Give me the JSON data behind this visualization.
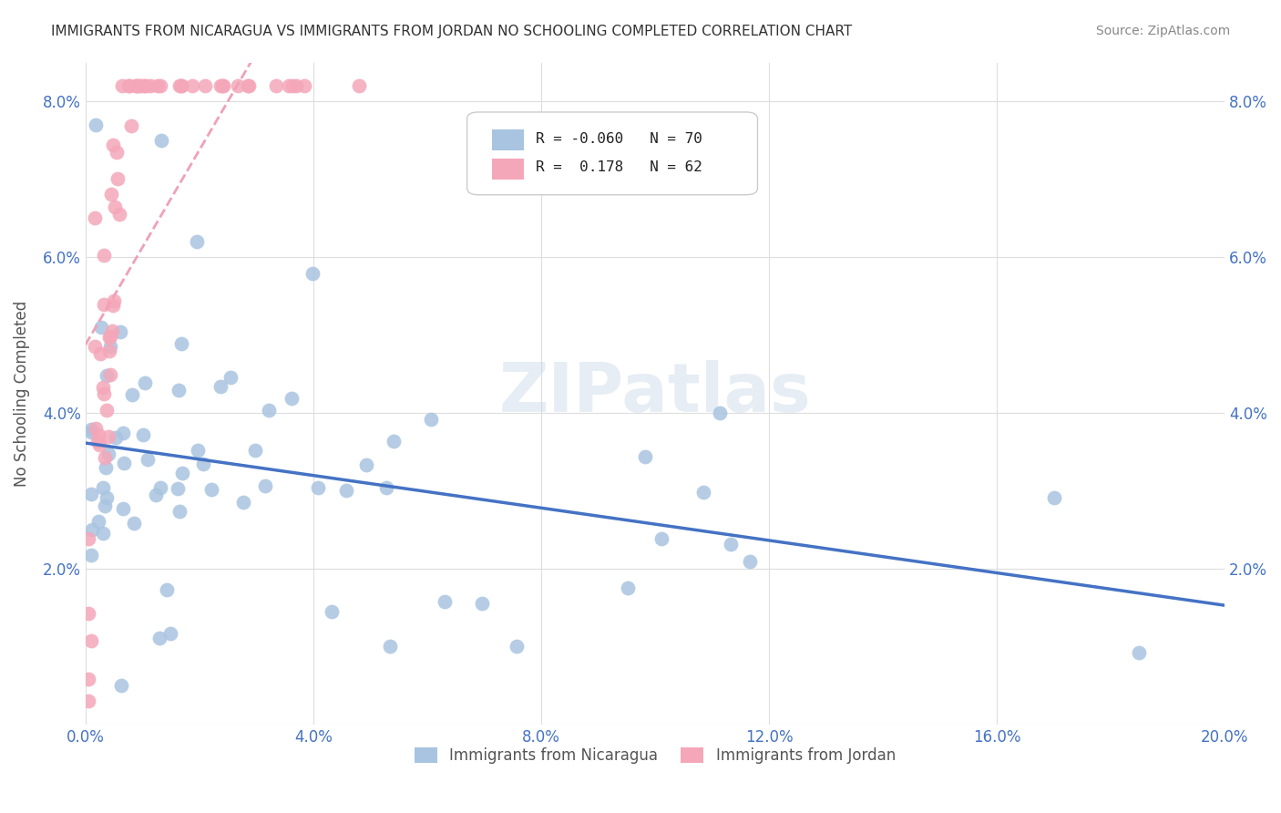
{
  "title": "IMMIGRANTS FROM NICARAGUA VS IMMIGRANTS FROM JORDAN NO SCHOOLING COMPLETED CORRELATION CHART",
  "source": "Source: ZipAtlas.com",
  "ylabel": "No Schooling Completed",
  "xlim": [
    0.0,
    0.2
  ],
  "ylim": [
    0.0,
    0.085
  ],
  "xticks": [
    0.0,
    0.04,
    0.08,
    0.12,
    0.16,
    0.2
  ],
  "xtick_labels": [
    "0.0%",
    "4.0%",
    "8.0%",
    "12.0%",
    "16.0%",
    "20.0%"
  ],
  "yticks": [
    0.0,
    0.02,
    0.04,
    0.06,
    0.08
  ],
  "ytick_labels": [
    "",
    "2.0%",
    "4.0%",
    "6.0%",
    "8.0%"
  ],
  "color_nicaragua": "#a8c4e0",
  "color_jordan": "#f4a7b9",
  "trendline_nicaragua": "#4472c4",
  "trendline_jordan": "#f0a0b8",
  "R_nicaragua": -0.06,
  "N_nicaragua": 70,
  "R_jordan": 0.178,
  "N_jordan": 62,
  "legend_label_nicaragua": "Immigrants from Nicaragua",
  "legend_label_jordan": "Immigrants from Jordan",
  "watermark": "ZIPatlas",
  "background_color": "#ffffff",
  "grid_color": "#dddddd"
}
